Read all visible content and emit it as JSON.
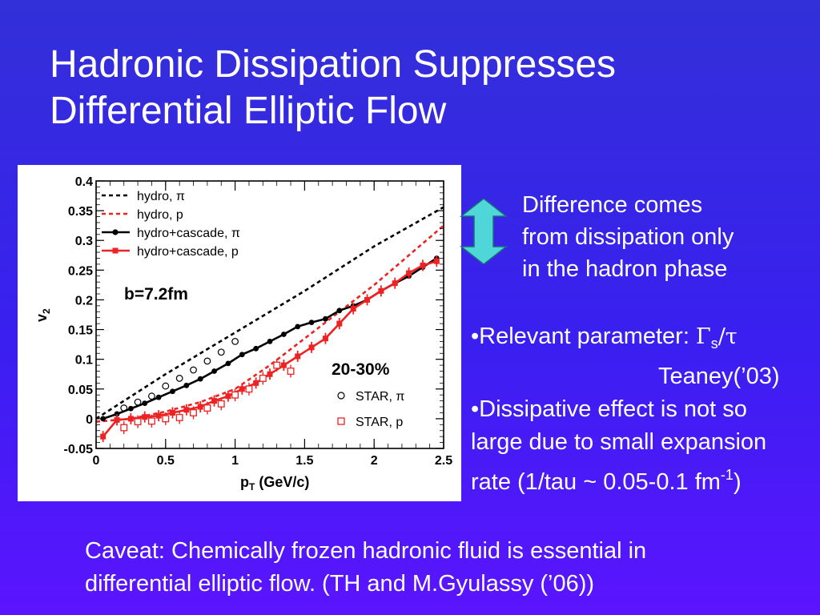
{
  "slide": {
    "title_line1": "Hadronic Dissipation Suppresses",
    "title_line2": "Differential Elliptic Flow",
    "arrow_color": "#4fd6d8",
    "difference_note": {
      "line1": "Difference comes",
      "line2": "from dissipation only",
      "line3": "in the hadron phase"
    },
    "bullet1": {
      "bullet": "•",
      "text": "Relevant parameter: ",
      "symbol_gamma": "Γ",
      "symbol_sub": "s",
      "symbol_tail": "/τ",
      "citation": "Teaney(’03)"
    },
    "bullet2": {
      "bullet": "•",
      "line1": "Dissipative effect is not so",
      "line2": "large due to small expansion",
      "line3_text": "rate (1/tau ~ 0.05-0.1 fm",
      "line3_sup": "-1",
      "line3_close": ")"
    },
    "caveat_line1": "Caveat: Chemically frozen hadronic fluid is essential in",
    "caveat_line2": "differential elliptic flow. (TH and M.Gyulassy (’06))"
  },
  "chart_data": {
    "type": "line",
    "xlabel": "p",
    "xlabel_sub": "T",
    "xlabel_unit": " (GeV/c)",
    "ylabel": "v",
    "ylabel_sub": "2",
    "xlim": [
      0,
      2.5
    ],
    "ylim": [
      -0.05,
      0.4
    ],
    "x_ticks": [
      0,
      0.5,
      1,
      1.5,
      2,
      2.5
    ],
    "x_tick_labels": [
      "0",
      "0.5",
      "1",
      "1.5",
      "2",
      "2.5"
    ],
    "y_ticks": [
      -0.05,
      0,
      0.05,
      0.1,
      0.15,
      0.2,
      0.25,
      0.3,
      0.35,
      0.4
    ],
    "y_tick_labels": [
      "-0.05",
      "0",
      "0.05",
      "0.1",
      "0.15",
      "0.2",
      "0.25",
      "0.3",
      "0.35",
      "0.4"
    ],
    "impact_label": "b=7.2fm",
    "centrality_label": "20-30%",
    "legend_top": [
      {
        "label": "hydro, π",
        "color": "#000000",
        "style": "dashed"
      },
      {
        "label": "hydro, p",
        "color": "#ee2222",
        "style": "dashed"
      },
      {
        "label": "hydro+cascade, π",
        "color": "#000000",
        "style": "solid-circle"
      },
      {
        "label": "hydro+cascade, p",
        "color": "#ee2222",
        "style": "solid-square"
      }
    ],
    "legend_bottom": [
      {
        "label": "STAR, π",
        "color": "#000000",
        "marker": "open-circle"
      },
      {
        "label": "STAR, p",
        "color": "#ee2222",
        "marker": "open-square"
      }
    ],
    "series": [
      {
        "id": "hydro-pi",
        "color": "#000000",
        "style": "dashed",
        "x": [
          0,
          0.5,
          1,
          1.5,
          2,
          2.5
        ],
        "y": [
          0,
          0.075,
          0.145,
          0.215,
          0.29,
          0.356
        ]
      },
      {
        "id": "hydro-p",
        "color": "#ee2222",
        "style": "dashed",
        "x": [
          0,
          0.25,
          0.5,
          0.75,
          1,
          1.25,
          1.5,
          1.75,
          2,
          2.25,
          2.5
        ],
        "y": [
          -0.005,
          0.0,
          0.012,
          0.028,
          0.05,
          0.09,
          0.135,
          0.18,
          0.225,
          0.275,
          0.325
        ]
      },
      {
        "id": "hydro-cascade-pi",
        "color": "#000000",
        "style": "solid",
        "marker": "circle",
        "x": [
          0.05,
          0.15,
          0.25,
          0.35,
          0.45,
          0.55,
          0.65,
          0.75,
          0.85,
          0.95,
          1.05,
          1.15,
          1.25,
          1.35,
          1.45,
          1.55,
          1.65,
          1.75,
          1.85,
          1.95,
          2.05,
          2.15,
          2.25,
          2.35,
          2.45
        ],
        "y": [
          0.0,
          0.008,
          0.017,
          0.026,
          0.036,
          0.046,
          0.056,
          0.067,
          0.08,
          0.093,
          0.108,
          0.118,
          0.13,
          0.142,
          0.155,
          0.162,
          0.168,
          0.182,
          0.19,
          0.2,
          0.215,
          0.228,
          0.24,
          0.255,
          0.27
        ]
      },
      {
        "id": "hydro-cascade-p",
        "color": "#ee2222",
        "style": "solid",
        "marker": "square",
        "x": [
          0.05,
          0.15,
          0.25,
          0.35,
          0.45,
          0.55,
          0.65,
          0.75,
          0.85,
          0.95,
          1.05,
          1.15,
          1.25,
          1.35,
          1.45,
          1.55,
          1.65,
          1.75,
          1.85,
          1.95,
          2.05,
          2.15,
          2.25,
          2.35,
          2.45
        ],
        "y": [
          -0.03,
          -0.002,
          0.0,
          0.003,
          0.005,
          0.01,
          0.015,
          0.02,
          0.03,
          0.038,
          0.05,
          0.06,
          0.075,
          0.09,
          0.105,
          0.12,
          0.135,
          0.16,
          0.185,
          0.2,
          0.215,
          0.228,
          0.245,
          0.258,
          0.265
        ]
      }
    ],
    "star_pi": {
      "marker": "open-circle",
      "color": "#000000",
      "x": [
        0.2,
        0.3,
        0.4,
        0.5,
        0.6,
        0.7,
        0.8,
        0.9,
        1.0
      ],
      "y": [
        0.018,
        0.028,
        0.038,
        0.055,
        0.068,
        0.082,
        0.097,
        0.112,
        0.13
      ]
    },
    "star_p": {
      "marker": "open-square",
      "color": "#ee2222",
      "x": [
        0.2,
        0.3,
        0.4,
        0.5,
        0.6,
        0.7,
        0.8,
        0.9,
        1.0,
        1.1,
        1.2,
        1.3,
        1.4
      ],
      "y": [
        -0.015,
        -0.005,
        -0.004,
        0.0,
        0.002,
        0.01,
        0.018,
        0.025,
        0.04,
        0.05,
        0.068,
        0.09,
        0.08
      ]
    }
  }
}
